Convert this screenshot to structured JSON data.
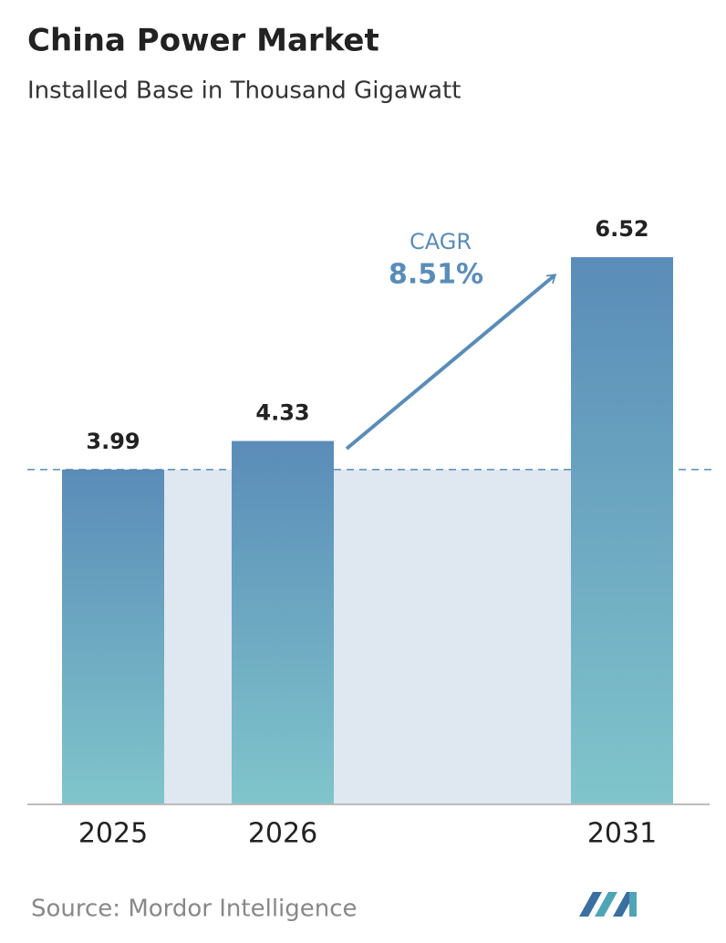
{
  "chart_data": {
    "type": "bar",
    "title": "China Power Market",
    "subtitle": "Installed Base in Thousand Gigawatt",
    "categories": [
      "2025",
      "2026",
      "2031"
    ],
    "values": [
      3.99,
      4.33,
      6.52
    ],
    "color_top": "#5a8cb8",
    "color_bottom": "#80c5cb",
    "annotation": {
      "label": "CAGR",
      "value": "8.51%"
    },
    "source": "Source: Mordor Intelligence"
  }
}
